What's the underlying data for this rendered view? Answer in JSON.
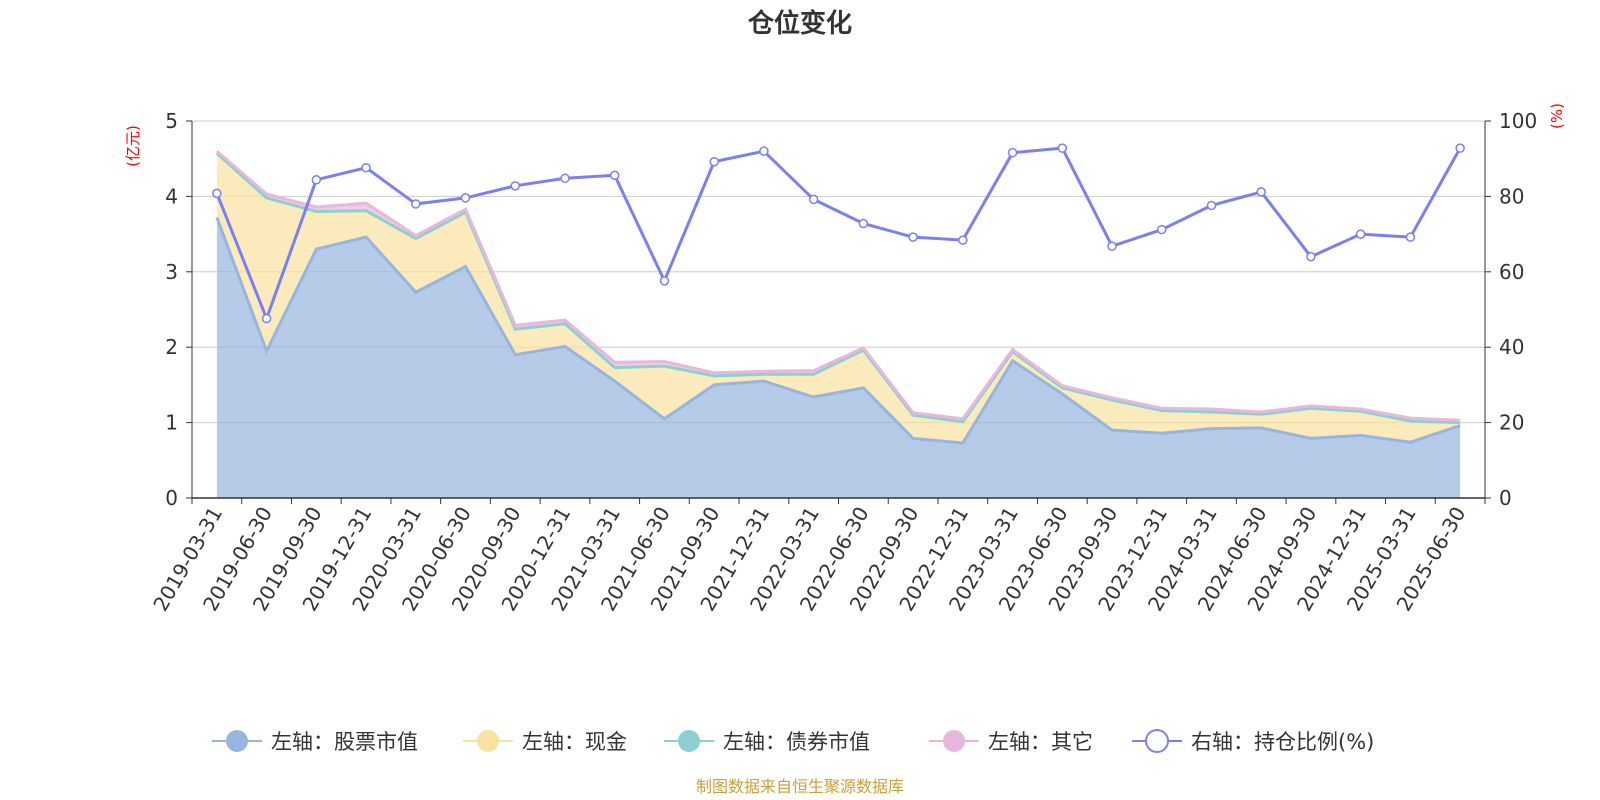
{
  "title": "仓位变化",
  "source_note": "制图数据来自恒生聚源数据库",
  "left_axis_unit": "(亿元)",
  "right_axis_unit": "(%)",
  "legend": [
    {
      "label": "左轴：股票市值",
      "color": "#97b5de",
      "marker": "filled-circle"
    },
    {
      "label": "左轴：现金",
      "color": "#f9e3a0",
      "marker": "filled-circle"
    },
    {
      "label": "左轴：债券市值",
      "color": "#8ecfd0",
      "marker": "filled-circle"
    },
    {
      "label": "左轴：其它",
      "color": "#e9b7dc",
      "marker": "filled-circle"
    },
    {
      "label": "右轴：持仓比例(%)",
      "color": "#7b7ff0",
      "marker": "hollow-circle"
    }
  ],
  "chart_data": {
    "type": "area",
    "title": "仓位变化",
    "x": [
      "2019-03-31",
      "2019-06-30",
      "2019-09-30",
      "2019-12-31",
      "2020-03-31",
      "2020-06-30",
      "2020-09-30",
      "2020-12-31",
      "2021-03-31",
      "2021-06-30",
      "2021-09-30",
      "2021-12-31",
      "2022-03-31",
      "2022-06-30",
      "2022-09-30",
      "2022-12-31",
      "2023-03-31",
      "2023-06-30",
      "2023-09-30",
      "2023-12-31",
      "2024-03-31",
      "2024-06-30",
      "2024-09-30",
      "2024-12-31",
      "2025-03-31",
      "2025-06-30"
    ],
    "left_axis": {
      "unit": "(亿元)",
      "ylim": [
        0,
        5
      ],
      "ticks": [
        0,
        1,
        2,
        3,
        4,
        5
      ]
    },
    "right_axis": {
      "unit": "(%)",
      "ylim": [
        0,
        100
      ],
      "ticks": [
        0,
        20,
        40,
        60,
        80,
        100
      ]
    },
    "stacked": true,
    "grid": true,
    "legend_position": "bottom",
    "series": [
      {
        "name": "左轴：股票市值",
        "axis": "left",
        "color": "#97b5de",
        "values": [
          3.72,
          1.95,
          3.3,
          3.46,
          2.73,
          3.07,
          1.9,
          2.01,
          1.55,
          1.05,
          1.5,
          1.55,
          1.34,
          1.46,
          0.79,
          0.73,
          1.82,
          1.38,
          0.9,
          0.86,
          0.92,
          0.93,
          0.79,
          0.83,
          0.74,
          0.96
        ]
      },
      {
        "name": "左轴：现金",
        "axis": "left",
        "color": "#f9e3a0",
        "values": [
          0.85,
          2.03,
          0.5,
          0.35,
          0.71,
          0.72,
          0.34,
          0.3,
          0.18,
          0.7,
          0.12,
          0.09,
          0.3,
          0.5,
          0.31,
          0.28,
          0.12,
          0.08,
          0.4,
          0.3,
          0.22,
          0.18,
          0.4,
          0.32,
          0.28,
          0.04
        ]
      },
      {
        "name": "左轴：债券市值",
        "axis": "left",
        "color": "#8ecfd0",
        "values": [
          0,
          0,
          0,
          0,
          0,
          0,
          0,
          0,
          0,
          0,
          0,
          0,
          0,
          0,
          0,
          0,
          0,
          0,
          0,
          0,
          0,
          0,
          0,
          0,
          0,
          0
        ]
      },
      {
        "name": "左轴：其它",
        "axis": "left",
        "color": "#e9b7dc",
        "values": [
          0.03,
          0.05,
          0.06,
          0.1,
          0.04,
          0.04,
          0.05,
          0.05,
          0.07,
          0.06,
          0.04,
          0.04,
          0.05,
          0.03,
          0.03,
          0.04,
          0.03,
          0.03,
          0.03,
          0.03,
          0.04,
          0.03,
          0.03,
          0.03,
          0.04,
          0.03
        ]
      },
      {
        "name": "右轴：持仓比例(%)",
        "axis": "right",
        "color": "#7b7ff0",
        "type": "line",
        "values": [
          80.8,
          47.6,
          84.4,
          87.6,
          78.0,
          79.6,
          82.8,
          84.8,
          85.6,
          57.6,
          89.2,
          92.0,
          79.2,
          72.8,
          69.2,
          68.4,
          91.6,
          92.8,
          66.8,
          71.2,
          77.6,
          81.2,
          64.0,
          70.0,
          69.2,
          92.8
        ]
      }
    ]
  }
}
